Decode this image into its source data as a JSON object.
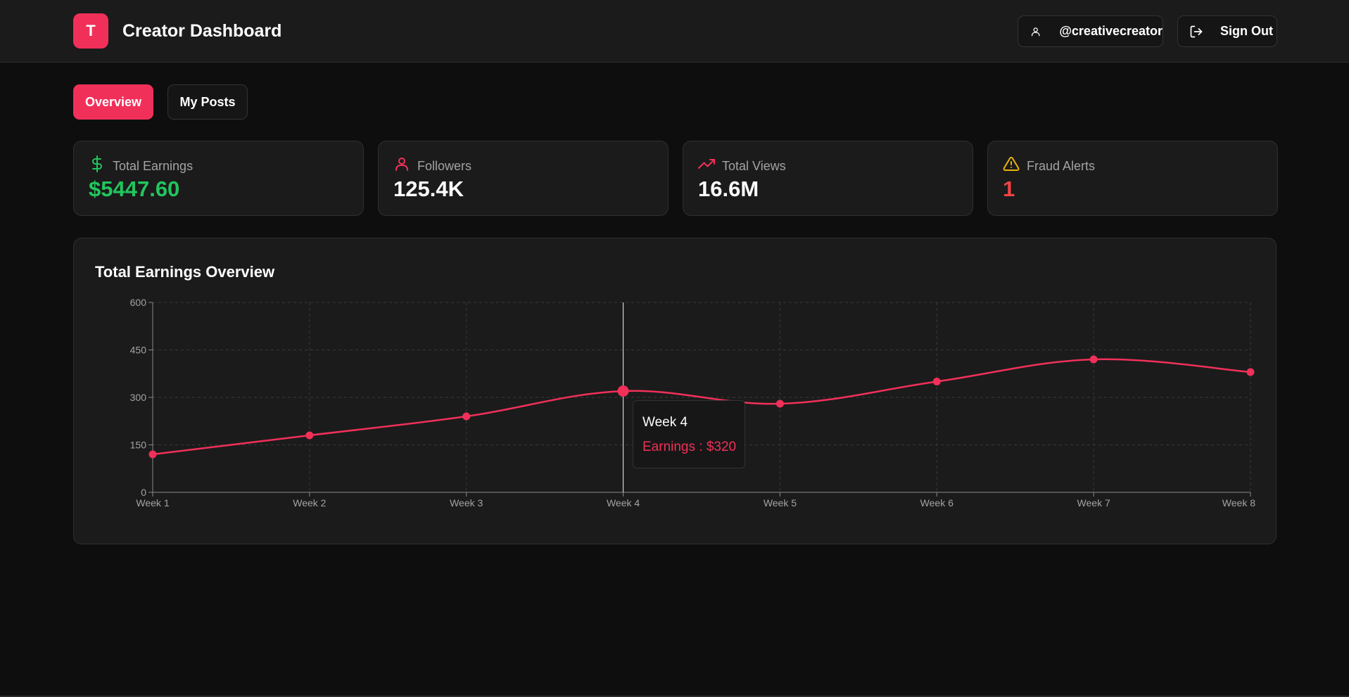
{
  "header": {
    "logo_letter": "T",
    "title": "Creator Dashboard",
    "username": "@creativecreator",
    "sign_out_label": "Sign Out"
  },
  "tabs": [
    {
      "label": "Overview",
      "active": true
    },
    {
      "label": "My Posts",
      "active": false
    }
  ],
  "stats": [
    {
      "label": "Total Earnings",
      "value": "$5447.60",
      "icon": "dollar-icon",
      "color": "#22c55e",
      "icon_color": "#22c55e"
    },
    {
      "label": "Followers",
      "value": "125.4K",
      "icon": "user-icon",
      "color": "#ffffff",
      "icon_color": "#f1305a"
    },
    {
      "label": "Total Views",
      "value": "16.6M",
      "icon": "trending-up-icon",
      "color": "#ffffff",
      "icon_color": "#f1305a"
    },
    {
      "label": "Fraud Alerts",
      "value": "1",
      "icon": "alert-triangle-icon",
      "color": "#ef4444",
      "icon_color": "#eab308"
    }
  ],
  "chart_section": {
    "title": "Total Earnings Overview"
  },
  "chart_data": {
    "type": "line",
    "x": [
      "Week 1",
      "Week 2",
      "Week 3",
      "Week 4",
      "Week 5",
      "Week 6",
      "Week 7",
      "Week 8"
    ],
    "series": [
      {
        "name": "Earnings",
        "values": [
          120,
          180,
          240,
          320,
          280,
          350,
          420,
          380
        ]
      }
    ],
    "ylim": [
      0,
      600
    ],
    "yticks": [
      0,
      150,
      300,
      450,
      600
    ],
    "grid": true,
    "line_color": "#f1305a",
    "hover_index": 3,
    "tooltip": {
      "title": "Week 4",
      "label": "Earnings",
      "value": "$320"
    }
  },
  "colors": {
    "accent": "#f1305a",
    "background": "#0e0e0e",
    "card": "#1b1b1b"
  }
}
